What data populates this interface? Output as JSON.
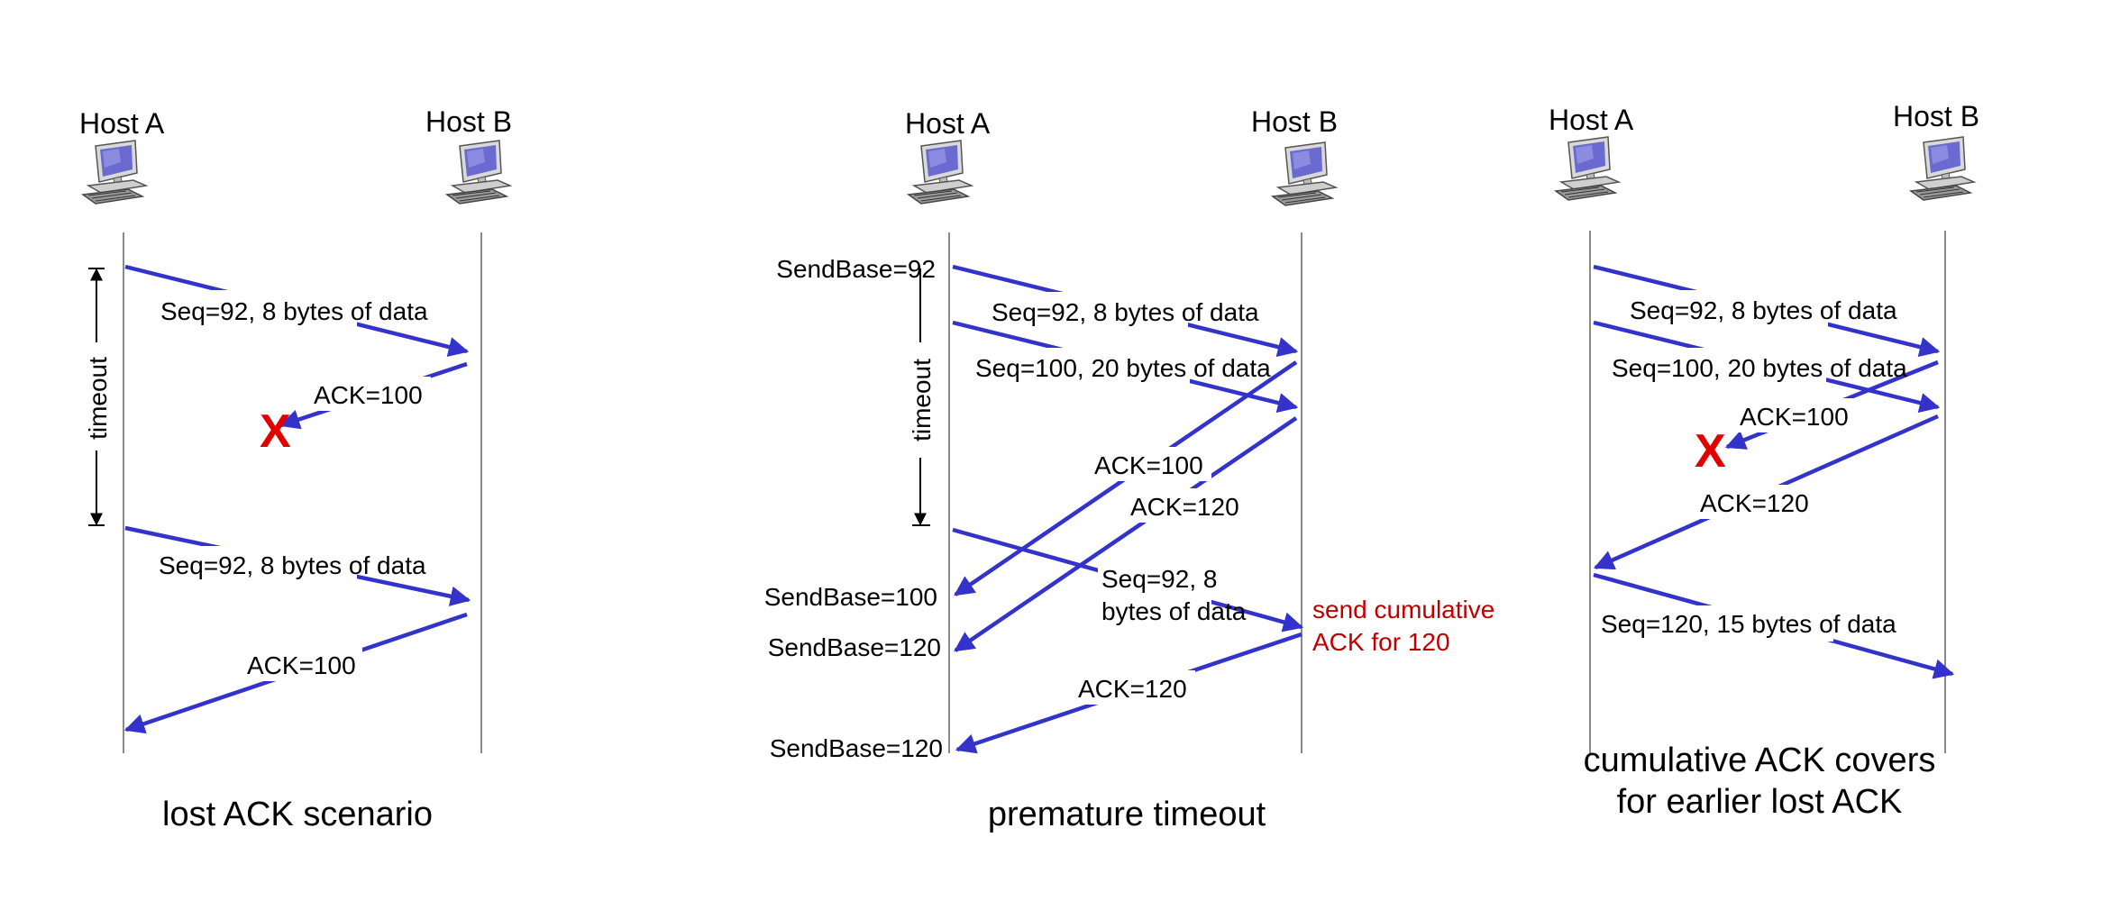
{
  "colors": {
    "arrow": "#3333cc",
    "loss_marker": "#e00000",
    "note": "#c00000",
    "timeline": "#8a8a8a"
  },
  "icons": {
    "host": "desktop-computer-icon"
  },
  "scenarios": [
    {
      "host_a": "Host A",
      "host_b": "Host B",
      "timeout_label": "timeout",
      "messages": [
        "Seq=92, 8 bytes of data",
        "ACK=100",
        "Seq=92, 8 bytes of data",
        "ACK=100"
      ],
      "loss_marker": "X",
      "caption": "lost ACK scenario"
    },
    {
      "host_a": "Host A",
      "host_b": "Host B",
      "timeout_label": "timeout",
      "send_bases": [
        "SendBase=92",
        "SendBase=100",
        "SendBase=120",
        "SendBase=120"
      ],
      "messages": [
        "Seq=92, 8 bytes of data",
        "Seq=100, 20 bytes of data",
        "ACK=100",
        "ACK=120",
        "Seq=92,  8",
        "bytes of data",
        "ACK=120"
      ],
      "note": [
        "send cumulative",
        "ACK for 120"
      ],
      "caption": "premature timeout"
    },
    {
      "host_a": "Host A",
      "host_b": "Host B",
      "messages": [
        "Seq=92, 8 bytes of data",
        "Seq=100, 20 bytes of data",
        "ACK=100",
        "ACK=120",
        "Seq=120,  15 bytes of data"
      ],
      "loss_marker": "X",
      "caption": [
        "cumulative ACK covers",
        "for earlier lost ACK"
      ]
    }
  ]
}
